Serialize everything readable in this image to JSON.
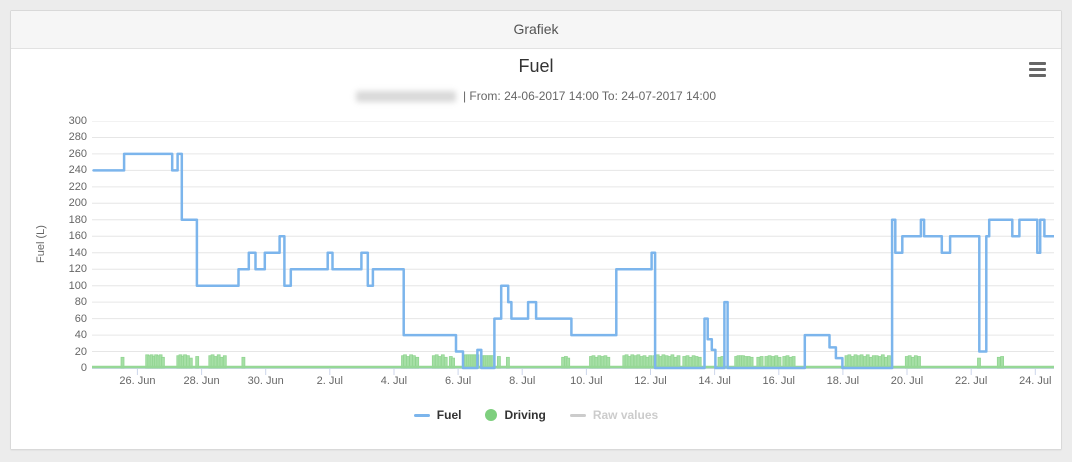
{
  "window": {
    "header_title": "Grafiek"
  },
  "chart_data": {
    "type": "line",
    "title": "Fuel",
    "subtitle": "| From: 24-06-2017 14:00 To: 24-07-2017 14:00",
    "x_start": "24-06-2017 14:00",
    "x_end": "24-07-2017 14:00",
    "xlabel": "",
    "ylabel": "Fuel (L)",
    "ylim": [
      0,
      300
    ],
    "x_range_days": 30,
    "grid": true,
    "legend_position": "bottom",
    "y_ticks": [
      0,
      20,
      40,
      60,
      80,
      100,
      120,
      140,
      160,
      180,
      200,
      220,
      240,
      260,
      280,
      300
    ],
    "x_ticks": [
      {
        "t": 1.4167,
        "label": "26. Jun"
      },
      {
        "t": 3.4167,
        "label": "28. Jun"
      },
      {
        "t": 5.4167,
        "label": "30. Jun"
      },
      {
        "t": 7.4167,
        "label": "2. Jul"
      },
      {
        "t": 9.4167,
        "label": "4. Jul"
      },
      {
        "t": 11.4167,
        "label": "6. Jul"
      },
      {
        "t": 13.4167,
        "label": "8. Jul"
      },
      {
        "t": 15.4167,
        "label": "10. Jul"
      },
      {
        "t": 17.4167,
        "label": "12. Jul"
      },
      {
        "t": 19.4167,
        "label": "14. Jul"
      },
      {
        "t": 21.4167,
        "label": "16. Jul"
      },
      {
        "t": 23.4167,
        "label": "18. Jul"
      },
      {
        "t": 25.4167,
        "label": "20. Jul"
      },
      {
        "t": 27.4167,
        "label": "22. Jul"
      },
      {
        "t": 29.4167,
        "label": "24. Jul"
      }
    ],
    "legend": [
      {
        "label": "Fuel",
        "swatch": "line",
        "color": "#7cb5ec",
        "enabled": true
      },
      {
        "label": "Driving",
        "swatch": "circle",
        "color": "#7ecf7e",
        "enabled": true
      },
      {
        "label": "Raw values",
        "swatch": "line",
        "color": "#cccccc",
        "enabled": false
      }
    ],
    "series": [
      {
        "name": "Fuel",
        "render": "step-line",
        "color": "#7cb5ec",
        "points_format": "[t_days_from_start, liters]",
        "points": [
          [
            0.05,
            240
          ],
          [
            1.0,
            260
          ],
          [
            2.5,
            240
          ],
          [
            2.67,
            260
          ],
          [
            2.8,
            180
          ],
          [
            3.27,
            100
          ],
          [
            4.57,
            120
          ],
          [
            4.89,
            140
          ],
          [
            5.1,
            120
          ],
          [
            5.39,
            140
          ],
          [
            5.85,
            160
          ],
          [
            6.0,
            100
          ],
          [
            6.2,
            120
          ],
          [
            7.35,
            140
          ],
          [
            7.5,
            120
          ],
          [
            8.4,
            140
          ],
          [
            8.6,
            100
          ],
          [
            8.76,
            120
          ],
          [
            9.72,
            40
          ],
          [
            11.35,
            20
          ],
          [
            11.57,
            0
          ],
          [
            12.02,
            22
          ],
          [
            12.14,
            0
          ],
          [
            12.55,
            60
          ],
          [
            12.76,
            100
          ],
          [
            12.98,
            80
          ],
          [
            13.08,
            60
          ],
          [
            13.6,
            80
          ],
          [
            13.85,
            60
          ],
          [
            14.95,
            40
          ],
          [
            16.35,
            120
          ],
          [
            17.45,
            140
          ],
          [
            17.56,
            0
          ],
          [
            19.1,
            60
          ],
          [
            19.2,
            35
          ],
          [
            19.33,
            22
          ],
          [
            19.44,
            0
          ],
          [
            19.72,
            80
          ],
          [
            19.82,
            0
          ],
          [
            22.23,
            40
          ],
          [
            23.0,
            25
          ],
          [
            23.2,
            12
          ],
          [
            23.4,
            0
          ],
          [
            24.95,
            180
          ],
          [
            25.05,
            140
          ],
          [
            25.27,
            160
          ],
          [
            25.85,
            180
          ],
          [
            25.95,
            160
          ],
          [
            26.5,
            140
          ],
          [
            26.76,
            160
          ],
          [
            27.67,
            20
          ],
          [
            27.89,
            160
          ],
          [
            27.98,
            180
          ],
          [
            28.7,
            160
          ],
          [
            28.92,
            180
          ],
          [
            29.48,
            140
          ],
          [
            29.57,
            180
          ],
          [
            29.7,
            160
          ],
          [
            30,
            160
          ]
        ]
      },
      {
        "name": "Driving",
        "render": "columns",
        "color": "#a6dfa6",
        "border_color": "#8fd48f",
        "baseline_color": "#96d896",
        "bars_format": "[t_days_from_start, liters_height]",
        "bars": [
          [
            0.95,
            13
          ],
          [
            1.72,
            16
          ],
          [
            1.79,
            15
          ],
          [
            1.86,
            16
          ],
          [
            1.93,
            14
          ],
          [
            2.0,
            16
          ],
          [
            2.07,
            15
          ],
          [
            2.14,
            16
          ],
          [
            2.21,
            13
          ],
          [
            2.69,
            15
          ],
          [
            2.76,
            16
          ],
          [
            2.83,
            14
          ],
          [
            2.9,
            16
          ],
          [
            2.99,
            15
          ],
          [
            3.08,
            12
          ],
          [
            3.28,
            14
          ],
          [
            3.69,
            15
          ],
          [
            3.76,
            16
          ],
          [
            3.85,
            14
          ],
          [
            3.95,
            16
          ],
          [
            4.04,
            13
          ],
          [
            4.14,
            15
          ],
          [
            4.72,
            13
          ],
          [
            9.7,
            15
          ],
          [
            9.76,
            16
          ],
          [
            9.85,
            14
          ],
          [
            9.95,
            16
          ],
          [
            10.04,
            15
          ],
          [
            10.14,
            13
          ],
          [
            10.66,
            15
          ],
          [
            10.75,
            16
          ],
          [
            10.84,
            14
          ],
          [
            10.94,
            16
          ],
          [
            11.03,
            13
          ],
          [
            11.19,
            14
          ],
          [
            11.26,
            12
          ],
          [
            11.66,
            16
          ],
          [
            11.72,
            16
          ],
          [
            11.78,
            16
          ],
          [
            11.84,
            16
          ],
          [
            11.9,
            16
          ],
          [
            11.96,
            16
          ],
          [
            12.02,
            16
          ],
          [
            12.19,
            15
          ],
          [
            12.25,
            15
          ],
          [
            12.31,
            15
          ],
          [
            12.37,
            15
          ],
          [
            12.43,
            15
          ],
          [
            12.49,
            15
          ],
          [
            12.69,
            14
          ],
          [
            12.97,
            13
          ],
          [
            14.69,
            13
          ],
          [
            14.78,
            14
          ],
          [
            14.85,
            12
          ],
          [
            15.56,
            14
          ],
          [
            15.64,
            15
          ],
          [
            15.73,
            13
          ],
          [
            15.82,
            15
          ],
          [
            15.92,
            14
          ],
          [
            16.01,
            15
          ],
          [
            16.1,
            13
          ],
          [
            16.6,
            15
          ],
          [
            16.67,
            16
          ],
          [
            16.76,
            14
          ],
          [
            16.85,
            16
          ],
          [
            16.95,
            15
          ],
          [
            17.04,
            16
          ],
          [
            17.14,
            14
          ],
          [
            17.23,
            15
          ],
          [
            17.32,
            13
          ],
          [
            17.41,
            15
          ],
          [
            17.54,
            15
          ],
          [
            17.64,
            16
          ],
          [
            17.73,
            14
          ],
          [
            17.82,
            16
          ],
          [
            17.92,
            15
          ],
          [
            18.01,
            14
          ],
          [
            18.1,
            16
          ],
          [
            18.2,
            13
          ],
          [
            18.29,
            15
          ],
          [
            18.47,
            14
          ],
          [
            18.57,
            15
          ],
          [
            18.66,
            13
          ],
          [
            18.76,
            15
          ],
          [
            18.85,
            14
          ],
          [
            18.95,
            13
          ],
          [
            19.57,
            13
          ],
          [
            19.66,
            14
          ],
          [
            20.09,
            14
          ],
          [
            20.16,
            15
          ],
          [
            20.23,
            15
          ],
          [
            20.3,
            15
          ],
          [
            20.38,
            14
          ],
          [
            20.48,
            14
          ],
          [
            20.57,
            13
          ],
          [
            20.78,
            13
          ],
          [
            20.88,
            14
          ],
          [
            21.03,
            14
          ],
          [
            21.13,
            15
          ],
          [
            21.23,
            14
          ],
          [
            21.34,
            15
          ],
          [
            21.44,
            13
          ],
          [
            21.59,
            14
          ],
          [
            21.69,
            15
          ],
          [
            21.79,
            13
          ],
          [
            21.88,
            14
          ],
          [
            23.53,
            15
          ],
          [
            23.62,
            16
          ],
          [
            23.72,
            14
          ],
          [
            23.81,
            16
          ],
          [
            23.91,
            15
          ],
          [
            24.0,
            16
          ],
          [
            24.1,
            14
          ],
          [
            24.19,
            16
          ],
          [
            24.29,
            13
          ],
          [
            24.38,
            15
          ],
          [
            24.47,
            15
          ],
          [
            24.57,
            14
          ],
          [
            24.66,
            16
          ],
          [
            24.76,
            13
          ],
          [
            24.85,
            15
          ],
          [
            25.41,
            14
          ],
          [
            25.5,
            15
          ],
          [
            25.6,
            13
          ],
          [
            25.69,
            15
          ],
          [
            25.79,
            14
          ],
          [
            27.66,
            12
          ],
          [
            28.28,
            13
          ],
          [
            28.38,
            14
          ]
        ]
      },
      {
        "name": "Raw values",
        "render": "hidden",
        "color": "#cccccc",
        "points": []
      }
    ]
  }
}
